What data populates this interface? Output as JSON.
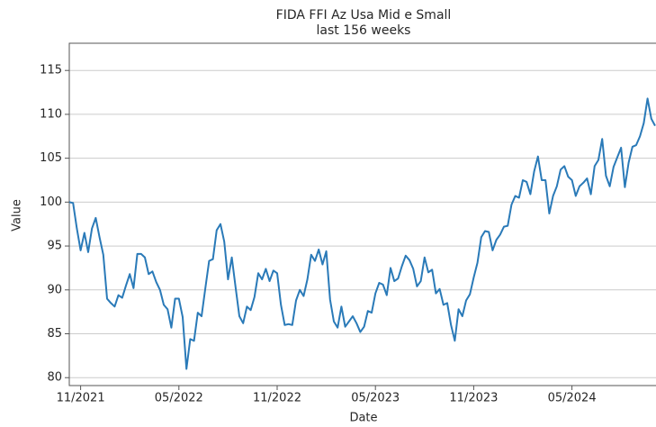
{
  "chart_data": {
    "type": "line",
    "title": "FIDA FFI Az Usa Mid e Small",
    "subtitle": "last 156 weeks",
    "x_label": "Date",
    "y_label": "Value",
    "x": [
      0,
      1,
      2,
      3,
      4,
      5,
      6,
      7,
      8,
      9,
      10,
      11,
      12,
      13,
      14,
      15,
      16,
      17,
      18,
      19,
      20,
      21,
      22,
      23,
      24,
      25,
      26,
      27,
      28,
      29,
      30,
      31,
      32,
      33,
      34,
      35,
      36,
      37,
      38,
      39,
      40,
      41,
      42,
      43,
      44,
      45,
      46,
      47,
      48,
      49,
      50,
      51,
      52,
      53,
      54,
      55,
      56,
      57,
      58,
      59,
      60,
      61,
      62,
      63,
      64,
      65,
      66,
      67,
      68,
      69,
      70,
      71,
      72,
      73,
      74,
      75,
      76,
      77,
      78,
      79,
      80,
      81,
      82,
      83,
      84,
      85,
      86,
      87,
      88,
      89,
      90,
      91,
      92,
      93,
      94,
      95,
      96,
      97,
      98,
      99,
      100,
      101,
      102,
      103,
      104,
      105,
      106,
      107,
      108,
      109,
      110,
      111,
      112,
      113,
      114,
      115,
      116,
      117,
      118,
      119,
      120,
      121,
      122,
      123,
      124,
      125,
      126,
      127,
      128,
      129,
      130,
      131,
      132,
      133,
      134,
      135,
      136,
      137,
      138,
      139,
      140,
      141,
      142,
      143,
      144,
      145,
      146,
      147,
      148,
      149,
      150,
      151,
      152,
      153,
      154,
      155
    ],
    "series": [
      {
        "name": "Value",
        "color": "#2a7ab8",
        "values": [
          100,
          99.9,
          97,
          94.5,
          96.5,
          94.3,
          97,
          98.2,
          96,
          94,
          89,
          88.5,
          88.1,
          89.4,
          89.1,
          90.5,
          91.8,
          90.2,
          94.1,
          94.1,
          93.7,
          91.8,
          92.1,
          90.9,
          90,
          88.3,
          87.8,
          85.7,
          89,
          89,
          86.9,
          81,
          84.4,
          84.2,
          87.4,
          87,
          90.2,
          93.3,
          93.5,
          96.8,
          97.5,
          95.5,
          91.2,
          93.7,
          90.3,
          87,
          86.2,
          88.1,
          87.7,
          89.2,
          91.9,
          91.2,
          92.4,
          91,
          92.2,
          91.9,
          88.3,
          86,
          86.1,
          86,
          88.8,
          90,
          89.3,
          91.2,
          94,
          93.3,
          94.6,
          92.9,
          94.4,
          88.9,
          86.4,
          85.7,
          88.1,
          85.8,
          86.4,
          87,
          86.2,
          85.2,
          85.8,
          87.6,
          87.4,
          89.6,
          90.8,
          90.6,
          89.4,
          92.5,
          91,
          91.3,
          92.7,
          93.9,
          93.4,
          92.4,
          90.4,
          91,
          93.7,
          92,
          92.3,
          89.6,
          90.1,
          88.3,
          88.5,
          86,
          84.2,
          87.8,
          87,
          88.8,
          89.5,
          91.4,
          93.1,
          96,
          96.7,
          96.6,
          94.5,
          95.7,
          96.3,
          97.2,
          97.3,
          99.7,
          100.7,
          100.5,
          102.5,
          102.3,
          100.9,
          103.5,
          105.2,
          102.5,
          102.5,
          98.7,
          100.7,
          101.8,
          103.7,
          104.1,
          102.9,
          102.5,
          100.7,
          101.8,
          102.2,
          102.7,
          100.9,
          104.1,
          104.8,
          107.2,
          103,
          101.8,
          104,
          105.1,
          106.2,
          101.7,
          104.5,
          106.3,
          106.5,
          107.5,
          109,
          111.8,
          109.5,
          108.7
        ]
      }
    ],
    "xlim": [
      0,
      155
    ],
    "xticks": [
      {
        "value": 3,
        "label": "11/2021"
      },
      {
        "value": 29,
        "label": "05/2022"
      },
      {
        "value": 55,
        "label": "11/2022"
      },
      {
        "value": 81,
        "label": "05/2023"
      },
      {
        "value": 107,
        "label": "11/2023"
      },
      {
        "value": 133,
        "label": "05/2024"
      }
    ],
    "ylim": [
      79.1,
      118.1
    ],
    "yticks": [
      80,
      85,
      90,
      95,
      100,
      105,
      110,
      115
    ],
    "grid": true
  }
}
